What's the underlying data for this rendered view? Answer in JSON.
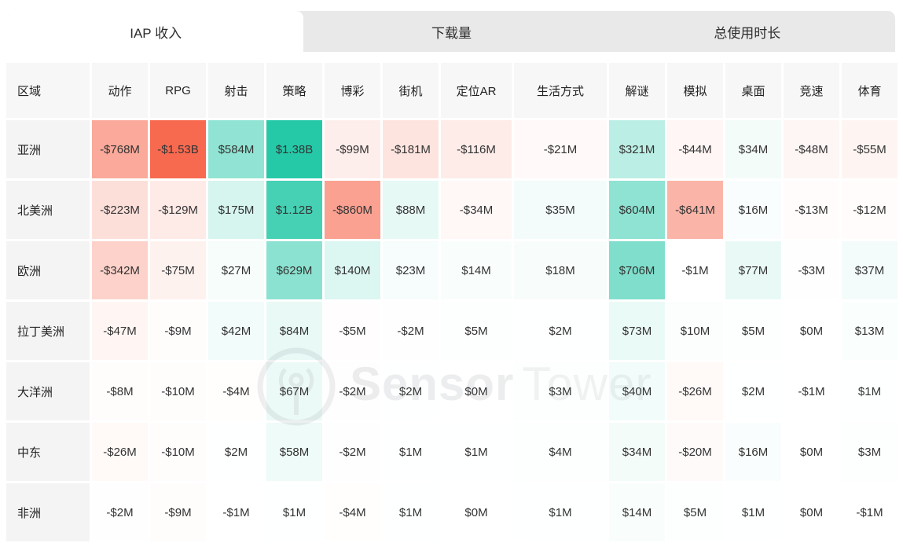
{
  "tabs": [
    {
      "id": "iap-revenue",
      "label": "IAP 收入",
      "active": true
    },
    {
      "id": "downloads",
      "label": "下载量",
      "active": false
    },
    {
      "id": "total-usage",
      "label": "总使用时长",
      "active": false
    }
  ],
  "watermark": {
    "icon": "sensortower-logo-icon",
    "brand_bold": "Sensor",
    "brand_light": "Tower"
  },
  "chart_data": {
    "type": "heatmap",
    "title": "IAP 收入",
    "row_header_label": "区域",
    "categories": [
      "动作",
      "RPG",
      "射击",
      "策略",
      "博彩",
      "街机",
      "定位AR",
      "生活方式",
      "解谜",
      "模拟",
      "桌面",
      "竞速",
      "体育"
    ],
    "rows": [
      {
        "region": "亚洲",
        "values_millions": [
          -768,
          -1530,
          584,
          1380,
          -99,
          -181,
          -116,
          -21,
          321,
          -44,
          34,
          -48,
          -55
        ],
        "labels": [
          "-$768M",
          "-$1.53B",
          "$584M",
          "$1.38B",
          "-$99M",
          "-$181M",
          "-$116M",
          "-$21M",
          "$321M",
          "-$44M",
          "$34M",
          "-$48M",
          "-$55M"
        ]
      },
      {
        "region": "北美洲",
        "values_millions": [
          -223,
          -129,
          175,
          1120,
          -860,
          88,
          -34,
          35,
          604,
          -641,
          16,
          -13,
          -12
        ],
        "labels": [
          "-$223M",
          "-$129M",
          "$175M",
          "$1.12B",
          "-$860M",
          "$88M",
          "-$34M",
          "$35M",
          "$604M",
          "-$641M",
          "$16M",
          "-$13M",
          "-$12M"
        ]
      },
      {
        "region": "欧洲",
        "values_millions": [
          -342,
          -75,
          27,
          629,
          140,
          23,
          14,
          18,
          706,
          -1,
          77,
          -3,
          37
        ],
        "labels": [
          "-$342M",
          "-$75M",
          "$27M",
          "$629M",
          "$140M",
          "$23M",
          "$14M",
          "$18M",
          "$706M",
          "-$1M",
          "$77M",
          "-$3M",
          "$37M"
        ]
      },
      {
        "region": "拉丁美洲",
        "values_millions": [
          -47,
          -9,
          42,
          84,
          -5,
          -2,
          5,
          2,
          73,
          10,
          5,
          0,
          13
        ],
        "labels": [
          "-$47M",
          "-$9M",
          "$42M",
          "$84M",
          "-$5M",
          "-$2M",
          "$5M",
          "$2M",
          "$73M",
          "$10M",
          "$5M",
          "$0M",
          "$13M"
        ]
      },
      {
        "region": "大洋洲",
        "values_millions": [
          -8,
          -10,
          -4,
          67,
          -2,
          2,
          0,
          3,
          40,
          -26,
          2,
          -1,
          1
        ],
        "labels": [
          "-$8M",
          "-$10M",
          "-$4M",
          "$67M",
          "-$2M",
          "$2M",
          "$0M",
          "$3M",
          "$40M",
          "-$26M",
          "$2M",
          "-$1M",
          "$1M"
        ]
      },
      {
        "region": "中东",
        "values_millions": [
          -26,
          -10,
          2,
          58,
          -2,
          1,
          1,
          4,
          34,
          -20,
          16,
          0,
          3
        ],
        "labels": [
          "-$26M",
          "-$10M",
          "$2M",
          "$58M",
          "-$2M",
          "$1M",
          "$1M",
          "$4M",
          "$34M",
          "-$20M",
          "$16M",
          "$0M",
          "$3M"
        ]
      },
      {
        "region": "非洲",
        "values_millions": [
          -2,
          -9,
          -1,
          1,
          -4,
          1,
          0,
          1,
          14,
          5,
          1,
          0,
          -1
        ],
        "labels": [
          "-$2M",
          "-$9M",
          "-$1M",
          "$1M",
          "-$4M",
          "$1M",
          "$0M",
          "$1M",
          "$14M",
          "$5M",
          "$1M",
          "$0M",
          "-$1M"
        ]
      }
    ],
    "color_scale": {
      "negative_max": "#f76a50",
      "positive_max": "#12c4a0",
      "zero": "#ffffff",
      "max_abs_millions": 1530,
      "gamma": 0.8
    },
    "legend": "none",
    "grid": "white-gutters"
  }
}
